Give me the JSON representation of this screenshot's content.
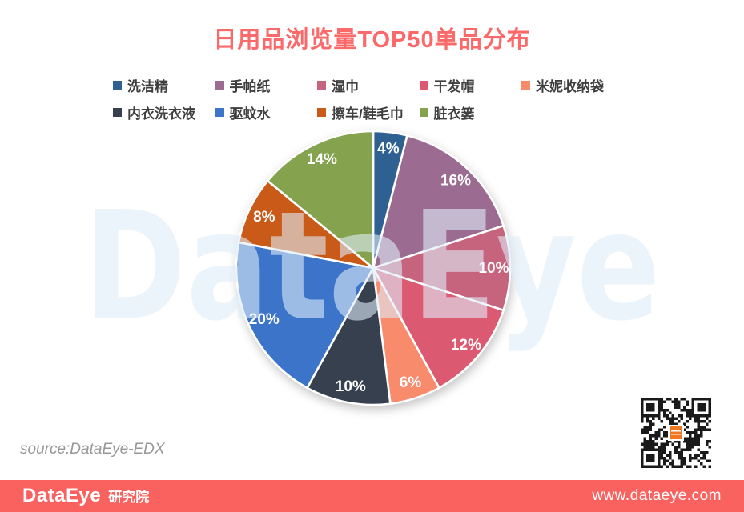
{
  "header": {
    "title": "日用品浏览量TOP50单品分布",
    "title_color": "#FB6A6A"
  },
  "watermark": {
    "text": "DataEye",
    "color": "rgba(223,236,249,0.6)"
  },
  "source_note": "source:DataEye-EDX",
  "qr_code": {
    "semantic": "wechat-qr-code",
    "module_color": "#1a1a1a",
    "center_logo_color": "#F07820"
  },
  "footer": {
    "background": "#F9625F",
    "brand": "DataEye",
    "brand_suffix": "研究院",
    "website": "www.dataeye.com"
  },
  "chart_data": {
    "type": "pie",
    "title": "日用品浏览量TOP50单品分布",
    "legend_position": "top",
    "start_angle_deg": 0,
    "clockwise": true,
    "label_format": "percent",
    "legend_rows": [
      5,
      4
    ],
    "categories": [
      "洗洁精",
      "手帕纸",
      "湿巾",
      "干发帽",
      "米妮收纳袋",
      "内衣洗衣液",
      "驱蚊水",
      "擦车/鞋毛巾",
      "脏衣篓"
    ],
    "values": [
      4,
      16,
      10,
      12,
      6,
      10,
      20,
      8,
      14
    ],
    "slices": [
      {
        "label": "洗洁精",
        "value": 4,
        "pct_label": "4%",
        "color": "#2E6191"
      },
      {
        "label": "手帕纸",
        "value": 16,
        "pct_label": "16%",
        "color": "#9C6B92"
      },
      {
        "label": "湿巾",
        "value": 10,
        "pct_label": "10%",
        "color": "#C6647D"
      },
      {
        "label": "干发帽",
        "value": 12,
        "pct_label": "12%",
        "color": "#DB5A71"
      },
      {
        "label": "米妮收纳袋",
        "value": 6,
        "pct_label": "6%",
        "color": "#F98B6D"
      },
      {
        "label": "内衣洗衣液",
        "value": 10,
        "pct_label": "10%",
        "color": "#36404F"
      },
      {
        "label": "驱蚊水",
        "value": 20,
        "pct_label": "20%",
        "color": "#3B74C9"
      },
      {
        "label": "擦车/鞋毛巾",
        "value": 8,
        "pct_label": "8%",
        "color": "#C95A18"
      },
      {
        "label": "脏衣篓",
        "value": 14,
        "pct_label": "14%",
        "color": "#85A24F"
      }
    ]
  }
}
